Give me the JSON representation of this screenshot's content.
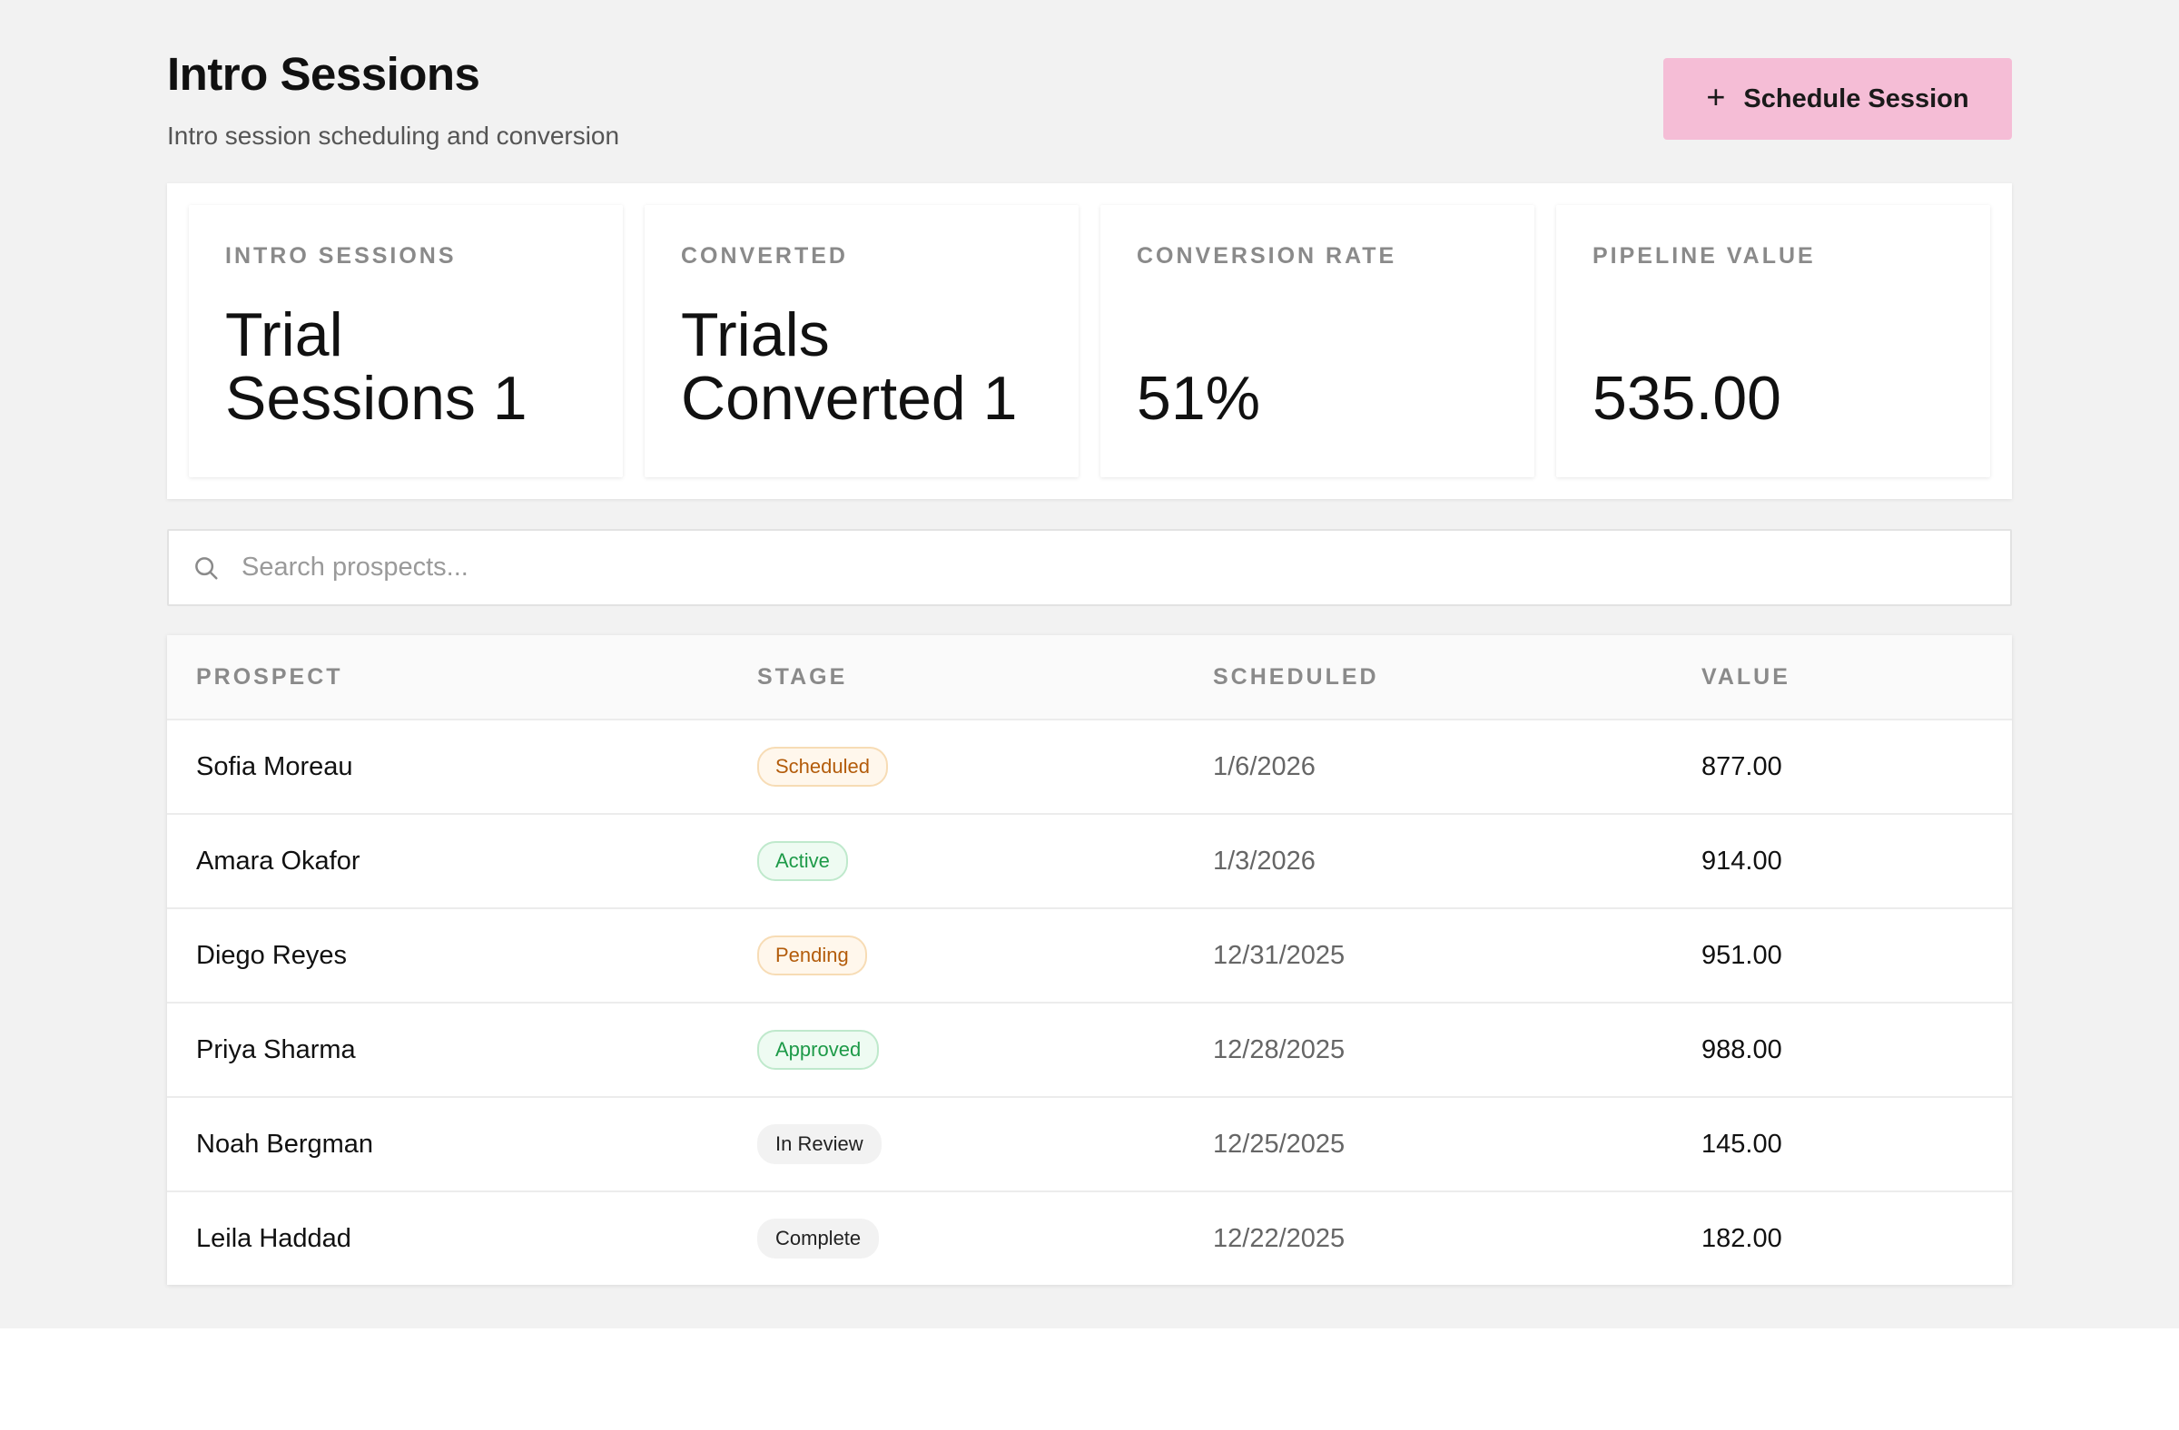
{
  "header": {
    "title": "Intro Sessions",
    "subtitle": "Intro session scheduling and conversion",
    "primary_button": {
      "icon": "plus-icon",
      "label": "Schedule Session"
    }
  },
  "stats": [
    {
      "label": "INTRO SESSIONS",
      "value": "Trial Sessions 1"
    },
    {
      "label": "CONVERTED",
      "value": "Trials Converted 1"
    },
    {
      "label": "CONVERSION RATE",
      "value": "51%"
    },
    {
      "label": "PIPELINE VALUE",
      "value": "535.00"
    }
  ],
  "search": {
    "placeholder": "Search prospects...",
    "value": "",
    "icon": "search-icon"
  },
  "table": {
    "columns": [
      "PROSPECT",
      "STAGE",
      "SCHEDULED",
      "VALUE"
    ],
    "rows": [
      {
        "prospect": "Sofia Moreau",
        "stage": "Scheduled",
        "scheduled": "1/6/2026",
        "value": "877.00"
      },
      {
        "prospect": "Amara Okafor",
        "stage": "Active",
        "scheduled": "1/3/2026",
        "value": "914.00"
      },
      {
        "prospect": "Diego Reyes",
        "stage": "Pending",
        "scheduled": "12/31/2025",
        "value": "951.00"
      },
      {
        "prospect": "Priya Sharma",
        "stage": "Approved",
        "scheduled": "12/28/2025",
        "value": "988.00"
      },
      {
        "prospect": "Noah Bergman",
        "stage": "In Review",
        "scheduled": "12/25/2025",
        "value": "145.00"
      },
      {
        "prospect": "Leila Haddad",
        "stage": "Complete",
        "scheduled": "12/22/2025",
        "value": "182.00"
      }
    ]
  },
  "colors": {
    "accent_button": "#f5bdd6",
    "badge_orange": "#b35c0b",
    "badge_green": "#1d9a48",
    "badge_gray": "#222222"
  }
}
